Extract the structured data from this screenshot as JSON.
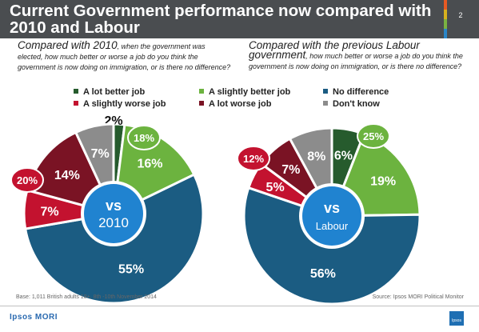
{
  "header": {
    "title": "Current Government performance now compared with 2010 and Labour",
    "page_number": "2",
    "stripe_colors": [
      "#e85a23",
      "#d8b21e",
      "#7ab341",
      "#2a86c8"
    ]
  },
  "left_subhead": {
    "big": "Compared with 2010",
    "small": ", when the government was elected,  how much better or worse a job do you think the government is now doing on immigration,  or is there no difference?"
  },
  "right_subhead": {
    "big": "Compared with the previous Labour government",
    "small": ", how much better or worse a job do you think the government is now doing on immigration, or is there no difference?"
  },
  "colors": {
    "a_lot_better": "#265b2d",
    "slightly_better": "#6cb33f",
    "no_difference": "#1b5c82",
    "slightly_worse": "#c3122f",
    "a_lot_worse": "#7a1324",
    "dont_know": "#8c8c8c",
    "center": "#2083d0"
  },
  "legend": [
    {
      "label": "A lot better job",
      "color": "#265b2d"
    },
    {
      "label": "A slightly better job",
      "color": "#6cb33f"
    },
    {
      "label": "No difference",
      "color": "#1b5c82"
    },
    {
      "label": "A slightly worse job",
      "color": "#c3122f"
    },
    {
      "label": "A lot worse job",
      "color": "#7a1324"
    },
    {
      "label": "Don't know",
      "color": "#8c8c8c"
    }
  ],
  "chart_data": [
    {
      "type": "pie",
      "center_label": [
        "vs",
        "2010"
      ],
      "categories": [
        "A lot better job",
        "A slightly better job",
        "No difference",
        "A slightly worse job",
        "A lot worse job",
        "Don't know"
      ],
      "values": [
        2,
        16,
        55,
        7,
        14,
        7
      ],
      "value_labels": [
        "2%",
        "16%",
        "55%",
        "7%",
        "14%",
        "7%"
      ],
      "totals": [
        {
          "label": "18%",
          "group": "better",
          "color": "#6cb33f"
        },
        {
          "label": "20%",
          "group": "worse",
          "color": "#c3122f"
        }
      ]
    },
    {
      "type": "pie",
      "center_label": [
        "vs",
        "Labour"
      ],
      "categories": [
        "A lot better job",
        "A slightly better job",
        "No difference",
        "A slightly worse job",
        "A lot worse job",
        "Don't know"
      ],
      "values": [
        6,
        19,
        56,
        5,
        7,
        8
      ],
      "value_labels": [
        "6%",
        "19%",
        "56%",
        "5%",
        "7%",
        "8%"
      ],
      "totals": [
        {
          "label": "25%",
          "group": "better",
          "color": "#6cb33f"
        },
        {
          "label": "12%",
          "group": "worse",
          "color": "#c3122f"
        }
      ]
    }
  ],
  "footer": {
    "base": "Base: 1,011 British adults 18+, 8th -10th November 2014",
    "source": "Source: Ipsos MORI Political Monitor",
    "brand": "Ipsos MORI",
    "logo_text": "Ipsos"
  }
}
